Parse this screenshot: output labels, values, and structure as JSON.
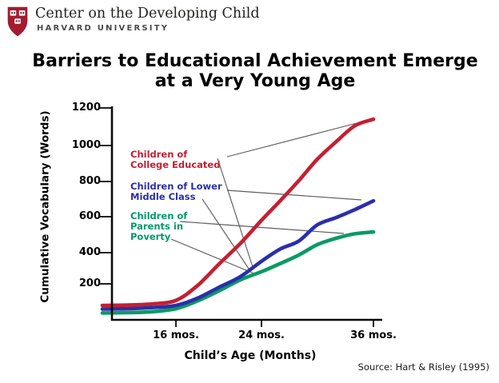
{
  "header": {
    "org_name": "Center on the Developing Child",
    "university": "HARVARD UNIVERSITY"
  },
  "title": {
    "line1": "Barriers to Educational Achievement Emerge",
    "line2": "at a Very Young Age"
  },
  "chart": {
    "y_axis_label": "Cumulative Vocabulary (Words)",
    "x_axis_label": "Child’s Age (Months)",
    "y_tick_labels": [
      "1200",
      "1000",
      "800",
      "600",
      "400",
      "200"
    ],
    "x_tick_labels": [
      "16 mos.",
      "24 mos.",
      "36 mos."
    ],
    "labels": {
      "college": [
        "Children of",
        "College Educated"
      ],
      "middle": [
        "Children of Lower",
        "Middle Class"
      ],
      "poverty": [
        "Children of",
        "Parents in",
        "Poverty"
      ]
    }
  },
  "source": {
    "text": "Source: Hart & Risley (1995)"
  },
  "chart_data": {
    "type": "line",
    "title": "Barriers to Educational Achievement Emerge at a Very Young Age",
    "xlabel": "Child’s Age (Months)",
    "ylabel": "Cumulative Vocabulary (Words)",
    "x_months": [
      10,
      12,
      14,
      16,
      18,
      20,
      22,
      24,
      26,
      28,
      30,
      32,
      34,
      36
    ],
    "x_tick_months": [
      16,
      24,
      36
    ],
    "x_tick_labels": [
      "16 mos.",
      "24 mos.",
      "36 mos."
    ],
    "y_ticks": [
      200,
      400,
      600,
      800,
      1000,
      1200
    ],
    "ylim": [
      0,
      1200
    ],
    "grid": false,
    "legend_position": "inline labels with gray leader lines pointing to curves",
    "series": [
      {
        "name": "Children of College Educated",
        "color": "#c32033",
        "values": [
          80,
          82,
          88,
          108,
          190,
          325,
          450,
          580,
          690,
          805,
          925,
          1020,
          1105,
          1140
        ]
      },
      {
        "name": "Children of Lower Middle Class",
        "color": "#2b2fa8",
        "values": [
          60,
          62,
          68,
          80,
          120,
          180,
          245,
          345,
          420,
          465,
          555,
          595,
          640,
          690
        ]
      },
      {
        "name": "Children of Parents in Poverty",
        "color": "#0a9a66",
        "values": [
          38,
          40,
          45,
          62,
          105,
          160,
          225,
          278,
          330,
          385,
          445,
          480,
          505,
          515
        ]
      }
    ],
    "source": "Hart & Risley (1995)"
  }
}
